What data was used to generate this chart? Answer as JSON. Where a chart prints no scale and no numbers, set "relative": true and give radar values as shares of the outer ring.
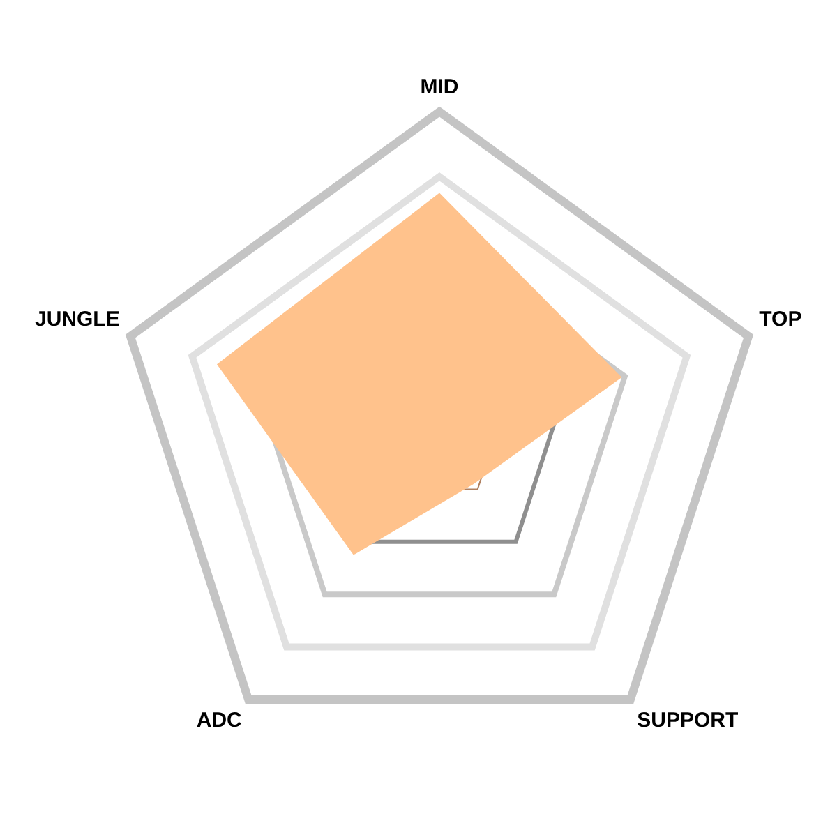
{
  "chart_data": {
    "type": "radar",
    "categories": [
      "MID",
      "TOP",
      "SUPPORT",
      "ADC",
      "JUNGLE"
    ],
    "relative": true,
    "grid": true,
    "series": [
      {
        "color": "#ffc28c",
        "values": [
          0.75,
          0.59,
          0.18,
          0.45,
          0.72
        ]
      }
    ]
  }
}
